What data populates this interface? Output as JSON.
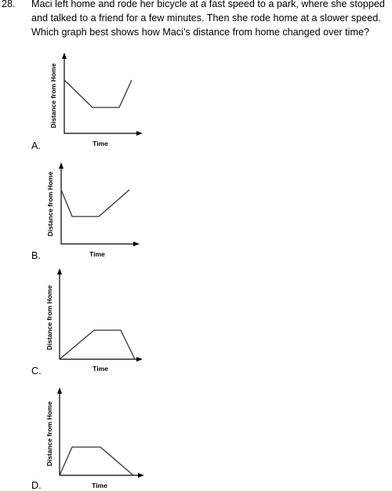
{
  "question": {
    "number": "28.",
    "lines": [
      "Maci left home and rode her bicycle at a fast speed to a park, where she stopped",
      "and talked to a friend for a few minutes.  Then she rode home at a slower speed.",
      "Which graph best shows how Maci’s distance from home changed over time?"
    ]
  },
  "options": [
    {
      "letter": "A.",
      "y_label": "Distance from Home",
      "x_label": "Time"
    },
    {
      "letter": "B.",
      "y_label": "Distance from Home",
      "x_label": "Time"
    },
    {
      "letter": "C.",
      "y_label": "Distance from Home",
      "x_label": "Time"
    },
    {
      "letter": "D.",
      "y_label": "Distance from Home",
      "x_label": "Time"
    }
  ]
}
